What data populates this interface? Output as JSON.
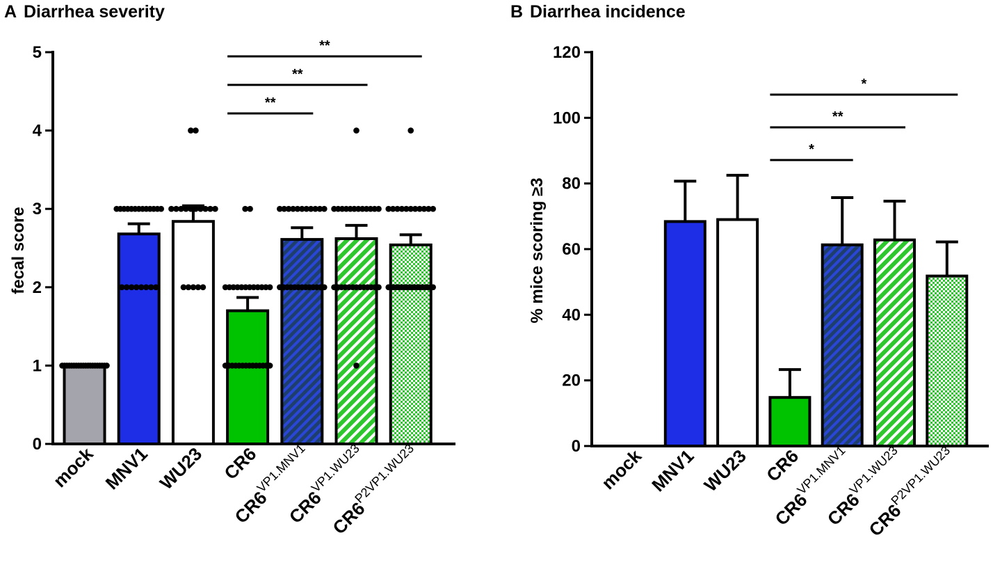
{
  "chart_data": [
    {
      "panel": "A",
      "type": "bar",
      "title": "Diarrhea severity",
      "xlabel": "",
      "ylabel": "fecal score",
      "ylim": [
        0,
        5
      ],
      "yticks": [
        0,
        1,
        2,
        3,
        4,
        5
      ],
      "categories": [
        {
          "base": "mock",
          "sup": ""
        },
        {
          "base": "MNV1",
          "sup": ""
        },
        {
          "base": "WU23",
          "sup": ""
        },
        {
          "base": "CR6",
          "sup": ""
        },
        {
          "base": "CR6",
          "sup": "VP1.MNV1"
        },
        {
          "base": "CR6",
          "sup": "VP1.WU23"
        },
        {
          "base": "CR6",
          "sup": "P2VP1.WU23"
        }
      ],
      "values": [
        1.0,
        2.68,
        2.84,
        1.7,
        2.61,
        2.62,
        2.54
      ],
      "error_upper": [
        0,
        0.13,
        0.2,
        0.17,
        0.15,
        0.17,
        0.13
      ],
      "fills": [
        "gray",
        "blue",
        "white",
        "green",
        "blue-hatch",
        "green-hatch",
        "green-check"
      ],
      "points": [
        [
          1,
          1,
          1,
          1,
          1,
          1,
          1,
          1,
          1,
          1,
          1,
          1,
          1,
          1,
          1,
          1,
          1,
          1,
          1,
          1
        ],
        [
          3,
          3,
          3,
          3,
          3,
          3,
          3,
          3,
          3,
          3,
          3,
          3,
          3,
          2,
          2,
          2,
          2,
          2,
          2,
          2,
          2
        ],
        [
          4,
          4,
          3,
          3,
          3,
          3,
          3,
          3,
          3,
          3,
          3,
          3,
          2,
          2,
          2,
          2,
          2
        ],
        [
          3,
          3,
          2,
          2,
          2,
          2,
          2,
          2,
          2,
          2,
          2,
          2,
          2,
          2,
          1,
          1,
          1,
          1,
          1,
          1,
          1,
          1,
          1,
          1,
          1,
          1,
          1,
          1
        ],
        [
          3,
          3,
          3,
          3,
          3,
          3,
          3,
          3,
          3,
          3,
          3,
          2,
          2,
          2,
          2,
          2,
          2,
          2,
          2,
          2,
          2,
          2,
          2,
          2
        ],
        [
          4,
          3,
          3,
          3,
          3,
          3,
          3,
          3,
          3,
          3,
          3,
          3,
          3,
          2,
          2,
          2,
          2,
          2,
          2,
          2,
          2,
          2,
          2,
          2,
          2,
          2,
          1
        ],
        [
          4,
          3,
          3,
          3,
          3,
          3,
          3,
          3,
          3,
          3,
          3,
          3,
          2,
          2,
          2,
          2,
          2,
          2,
          2,
          2,
          2,
          2,
          2,
          2,
          2,
          2,
          2,
          2,
          2,
          2
        ]
      ],
      "significance": [
        {
          "from": 3,
          "to": 4,
          "label": "**"
        },
        {
          "from": 3,
          "to": 5,
          "label": "**"
        },
        {
          "from": 3,
          "to": 6,
          "label": "**"
        }
      ]
    },
    {
      "panel": "B",
      "type": "bar",
      "title": "Diarrhea incidence",
      "xlabel": "",
      "ylabel": "% mice scoring ≥3",
      "ylim": [
        0,
        120
      ],
      "yticks": [
        0,
        20,
        40,
        60,
        80,
        100,
        120
      ],
      "categories": [
        {
          "base": "mock",
          "sup": ""
        },
        {
          "base": "MNV1",
          "sup": ""
        },
        {
          "base": "WU23",
          "sup": ""
        },
        {
          "base": "CR6",
          "sup": ""
        },
        {
          "base": "CR6",
          "sup": "VP1.MNV1"
        },
        {
          "base": "CR6",
          "sup": "VP1.WU23"
        },
        {
          "base": "CR6",
          "sup": "P2VP1.WU23"
        }
      ],
      "values": [
        0,
        68.4,
        69.0,
        14.8,
        61.3,
        62.8,
        51.8
      ],
      "error_upper": [
        0,
        12.3,
        13.5,
        8.5,
        14.4,
        11.8,
        10.4
      ],
      "fills": [
        "gray",
        "blue",
        "white",
        "green",
        "blue-hatch",
        "green-hatch",
        "green-check"
      ],
      "points": [],
      "significance": [
        {
          "from": 3,
          "to": 4,
          "label": "*"
        },
        {
          "from": 3,
          "to": 5,
          "label": "**"
        },
        {
          "from": 3,
          "to": 6,
          "label": "*"
        }
      ]
    }
  ]
}
